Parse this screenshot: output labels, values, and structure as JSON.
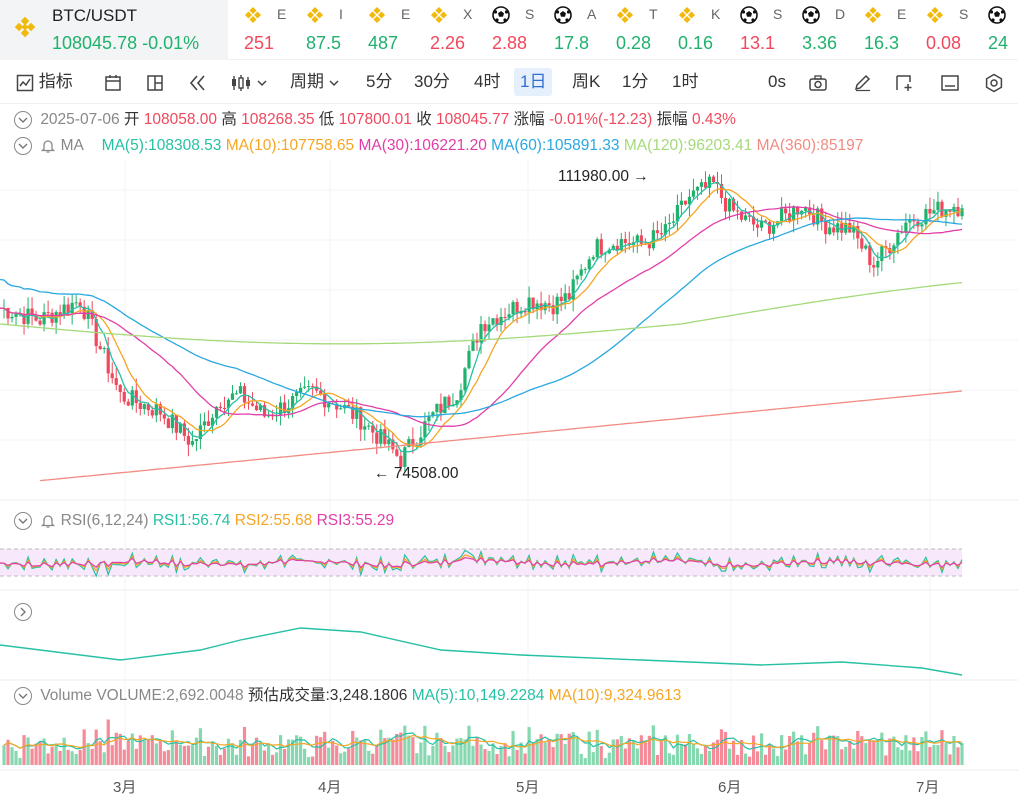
{
  "ticker": {
    "symbol": "BTC/USDT",
    "price": "108045.78",
    "change": "-0.01%",
    "cells": [
      {
        "icon": "bnb",
        "name": "E",
        "value": "251",
        "dir": "dn"
      },
      {
        "icon": "bnb",
        "name": "I",
        "value": "87.5",
        "dir": "up"
      },
      {
        "icon": "bnb",
        "name": "E",
        "value": "487",
        "dir": "up"
      },
      {
        "icon": "bnb",
        "name": "X",
        "value": "2.26",
        "dir": "dn"
      },
      {
        "icon": "soccer",
        "name": "S",
        "value": "2.88",
        "dir": "dn"
      },
      {
        "icon": "soccer",
        "name": "A",
        "value": "17.8",
        "dir": "up"
      },
      {
        "icon": "bnb",
        "name": "T",
        "value": "0.28",
        "dir": "up"
      },
      {
        "icon": "bnb",
        "name": "K",
        "value": "0.16",
        "dir": "up"
      },
      {
        "icon": "soccer",
        "name": "S",
        "value": "13.1",
        "dir": "dn"
      },
      {
        "icon": "soccer",
        "name": "D",
        "value": "3.36",
        "dir": "up"
      },
      {
        "icon": "bnb",
        "name": "E",
        "value": "16.3",
        "dir": "up"
      },
      {
        "icon": "bnb",
        "name": "S",
        "value": "0.08",
        "dir": "dn"
      },
      {
        "icon": "soccer",
        "name": "",
        "value": "24",
        "dir": "up"
      }
    ]
  },
  "toolbar": {
    "indicators": "指标",
    "period": "周期",
    "intervals": [
      "5分",
      "30分",
      "4时",
      "1日",
      "周K",
      "1分",
      "1时"
    ],
    "active_interval": "1日",
    "countdown": "0s"
  },
  "ohlc": {
    "date": "2025-07-06",
    "open_label": "开",
    "open": "108058.00",
    "high_label": "高",
    "high": "108268.35",
    "low_label": "低",
    "low": "107800.01",
    "close_label": "收",
    "close": "108045.77",
    "change_label": "涨幅",
    "change": "-0.01%(-12.23)",
    "amp_label": "振幅",
    "amp": "0.43%"
  },
  "ma": {
    "label": "MA",
    "ma5": "MA(5):108308.53",
    "ma10": "MA(10):107758.65",
    "ma30": "MA(30):106221.20",
    "ma60": "MA(60):105891.33",
    "ma120": "MA(120):96203.41",
    "ma360": "MA(360):85197"
  },
  "annotations": {
    "high": "111980.00",
    "low": "74508.00"
  },
  "rsi": {
    "label": "RSI(6,12,24)",
    "rsi1": "RSI1:56.74",
    "rsi2": "RSI2:55.68",
    "rsi3": "RSI3:55.29"
  },
  "volume": {
    "label": "Volume",
    "volume": "VOLUME:2,692.0048",
    "estimate": "预估成交量:3,248.1806",
    "ma5": "MA(5):10,149.2284",
    "ma10": "MA(10):9,324.9613"
  },
  "months": [
    "3月",
    "4月",
    "5月",
    "6月",
    "7月"
  ],
  "colors": {
    "up": "#20b26c",
    "down": "#f0485d",
    "accent": "#2f6fd6"
  },
  "chart_data": {
    "type": "candlestick",
    "symbol": "BTC/USDT",
    "interval": "1日",
    "close_path": [
      [
        0,
        95500
      ],
      [
        10,
        94000
      ],
      [
        20,
        96500
      ],
      [
        30,
        84500
      ],
      [
        40,
        82500
      ],
      [
        48,
        78500
      ],
      [
        55,
        84000
      ],
      [
        60,
        84500
      ],
      [
        66,
        82000
      ],
      [
        72,
        83500
      ],
      [
        78,
        85000
      ],
      [
        84,
        83500
      ],
      [
        90,
        81500
      ],
      [
        96,
        78500
      ],
      [
        100,
        76500
      ],
      [
        104,
        79500
      ],
      [
        108,
        82000
      ],
      [
        114,
        85000
      ],
      [
        120,
        93500
      ],
      [
        126,
        95000
      ],
      [
        132,
        96500
      ],
      [
        138,
        96000
      ],
      [
        142,
        97000
      ],
      [
        148,
        103000
      ],
      [
        154,
        104000
      ],
      [
        160,
        103500
      ],
      [
        166,
        105000
      ],
      [
        172,
        109500
      ],
      [
        178,
        111000
      ],
      [
        182,
        108000
      ],
      [
        186,
        106500
      ],
      [
        190,
        105500
      ],
      [
        196,
        107000
      ],
      [
        200,
        108500
      ],
      [
        206,
        106000
      ],
      [
        212,
        105500
      ],
      [
        218,
        101000
      ],
      [
        222,
        103500
      ],
      [
        226,
        106500
      ],
      [
        232,
        107500
      ],
      [
        238,
        108500
      ],
      [
        240,
        108045
      ]
    ],
    "high_marker": 111980.0,
    "low_marker": 74508.0,
    "ma_last": {
      "MA5": 108308.53,
      "MA10": 107758.65,
      "MA30": 106221.2,
      "MA60": 105891.33,
      "MA120": 96203.41
    }
  }
}
